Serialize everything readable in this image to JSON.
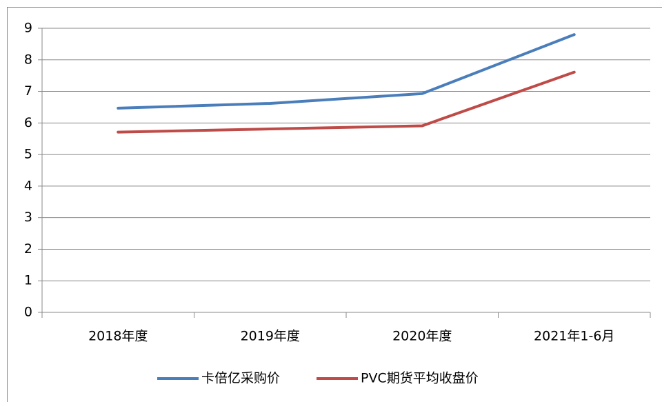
{
  "chart_data": {
    "type": "line",
    "categories": [
      "2018年度",
      "2019年度",
      "2020年度",
      "2021年1-6月"
    ],
    "series": [
      {
        "name": "卡倍亿采购价",
        "color": "#4a7ebb",
        "values": [
          6.47,
          6.62,
          6.93,
          8.8
        ]
      },
      {
        "name": "PVC期货平均收盘价",
        "color": "#be4b48",
        "values": [
          5.71,
          5.81,
          5.91,
          7.61
        ]
      }
    ],
    "ylim": [
      0,
      9
    ],
    "yticks": [
      0,
      1,
      2,
      3,
      4,
      5,
      6,
      7,
      8,
      9
    ],
    "grid": true,
    "legend": "bottom"
  }
}
